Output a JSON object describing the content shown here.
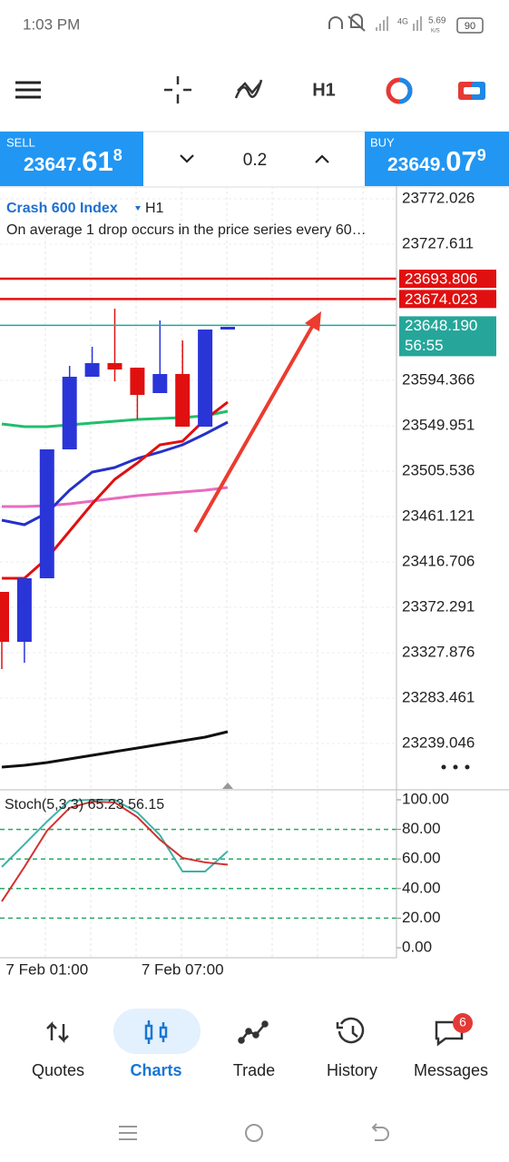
{
  "status_bar": {
    "time": "1:03 PM",
    "network": "4G",
    "speed": "5.69",
    "speed_unit": "K/S",
    "battery": "90"
  },
  "toolbar": {
    "timeframe": "H1"
  },
  "trade_panel": {
    "sell": {
      "label": "SELL",
      "price": "23647.",
      "big": "61",
      "sup": "8"
    },
    "volume": "0.2",
    "buy": {
      "label": "BUY",
      "price": "23649.",
      "big": "07",
      "sup": "9"
    }
  },
  "chart": {
    "type": "candlestick",
    "symbol": "Crash 600 Index",
    "timeframe": "H1",
    "description": "On average 1 drop occurs in the price series every 60…",
    "ylim": [
      23193.74,
      23784.46
    ],
    "yticks": [
      23772.026,
      23727.611,
      23594.366,
      23549.951,
      23505.536,
      23461.121,
      23416.706,
      23372.291,
      23327.876,
      23283.461,
      23239.046
    ],
    "up_color": "#2a35d8",
    "down_color": "#e01010",
    "candles": [
      {
        "open": 23387.4,
        "high": 23387.4,
        "low": 23311.89,
        "close": 23338.54
      },
      {
        "open": 23338.54,
        "high": 23400.72,
        "low": 23318.11,
        "close": 23400.72
      },
      {
        "open": 23400.72,
        "high": 23526.86,
        "low": 23400.72,
        "close": 23526.86
      },
      {
        "open": 23526.86,
        "high": 23608.58,
        "low": 23526.86,
        "close": 23597.92
      },
      {
        "open": 23597.92,
        "high": 23627.24,
        "low": 23597.92,
        "close": 23611.25
      },
      {
        "open": 23611.25,
        "high": 23664.55,
        "low": 23593.48,
        "close": 23605.03
      },
      {
        "open": 23606.81,
        "high": 23606.81,
        "low": 23556.17,
        "close": 23580.16
      },
      {
        "open": 23581.93,
        "high": 23653.0,
        "low": 23581.93,
        "close": 23600.59
      },
      {
        "open": 23600.59,
        "high": 23633.46,
        "low": 23549.07,
        "close": 23549.07
      },
      {
        "open": 23549.07,
        "high": 23644.11,
        "low": 23549.07,
        "close": 23644.11
      },
      {
        "open": 23644.11,
        "high": 23646.78,
        "low": 23644.11,
        "close": 23646.78
      }
    ],
    "moving_averages": [
      {
        "color": "#1fbf6a",
        "values": [
          23551.73,
          23549.07,
          23549.07,
          23550.84,
          23552.62,
          23554.4,
          23556.17,
          23557.06,
          23557.95,
          23559.73,
          23564.17
        ]
      },
      {
        "color": "#e86bc1",
        "values": [
          23470.9,
          23470.9,
          23471.78,
          23473.56,
          23476.23,
          23478.89,
          23481.56,
          23483.33,
          23485.11,
          23486.89,
          23489.55
        ]
      },
      {
        "color": "#2531c9",
        "values": [
          23457.57,
          23453.13,
          23464.68,
          23486.89,
          23504.65,
          23509.09,
          23517.98,
          23524.19,
          23531.3,
          23541.96,
          23553.51
        ]
      },
      {
        "color": "#e01010",
        "values": [
          23400.72,
          23400.72,
          23420.26,
          23446.91,
          23473.56,
          23497.55,
          23513.53,
          23531.3,
          23534.85,
          23556.17,
          23573.05
        ]
      },
      {
        "color": "#111111",
        "values": [
          23215.95,
          23217.73,
          23220.39,
          23223.95,
          23227.5,
          23231.06,
          23234.61,
          23238.16,
          23241.72,
          23245.27,
          23250.6
        ]
      }
    ],
    "levels": [
      {
        "value": 23693.806,
        "color": "#e01010"
      },
      {
        "value": 23674.023,
        "color": "#e01010"
      },
      {
        "value": 23648.19,
        "label": "23648.190",
        "color": "#26a69a",
        "timer": "56:55"
      }
    ],
    "time_labels": [
      null,
      null,
      "7 Feb 01:00",
      null,
      null,
      null,
      null,
      null,
      "7 Feb 07:00",
      null,
      null
    ]
  },
  "stochastic": {
    "label": "Stoch(5,3,3) 65.23 56.15",
    "ylim": [
      -6.75,
      105.52
    ],
    "yticks": [
      {
        "value": 100,
        "label": "100.00"
      },
      {
        "value": 80,
        "label": "80.00"
      },
      {
        "value": 60,
        "label": "60.00"
      },
      {
        "value": 40,
        "label": "40.00"
      },
      {
        "value": 20,
        "label": "20.00"
      },
      {
        "value": 0,
        "label": "0.00"
      }
    ],
    "levels": [
      80,
      60,
      40,
      20
    ],
    "series": [
      {
        "color": "#3cb3a8",
        "values": [
          54.6,
          69.9,
          85.3,
          99.4,
          100,
          100,
          91.4,
          76.1,
          51.5,
          51.5,
          65.23
        ]
      },
      {
        "color": "#d32f2f",
        "values": [
          31.3,
          54.6,
          79.1,
          94.5,
          98.8,
          98.2,
          88.3,
          73.0,
          60.7,
          57.7,
          56.15
        ]
      }
    ]
  },
  "bottom_nav": {
    "items": [
      "Quotes",
      "Charts",
      "Trade",
      "History",
      "Messages"
    ],
    "badge": "6"
  }
}
